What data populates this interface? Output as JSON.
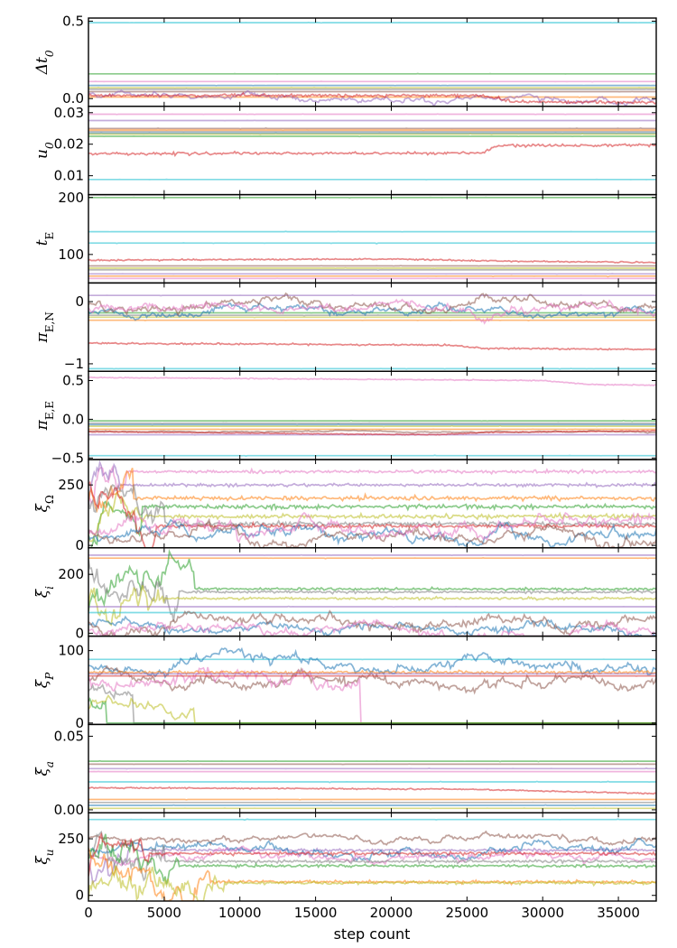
{
  "chart_data": {
    "type": "line",
    "description_kind": "MCMC walker traces, stacked panels sharing x axis",
    "xlabel": "step count",
    "xlim": [
      0,
      37500
    ],
    "xticks": [
      0,
      5000,
      10000,
      15000,
      20000,
      25000,
      30000,
      35000
    ],
    "xtick_labels": [
      "0",
      "5000",
      "10000",
      "15000",
      "20000",
      "25000",
      "30000",
      "35000"
    ],
    "grid": false,
    "legend": "none",
    "colors": [
      "#1f77b4",
      "#ff7f0e",
      "#2ca02c",
      "#d62728",
      "#9467bd",
      "#8c564b",
      "#e377c2",
      "#7f7f7f",
      "#bcbd22",
      "#17becf"
    ],
    "panels": [
      {
        "label_main": "Δt",
        "label_sub": "0",
        "sub_style": "italic",
        "ylim": [
          -0.05,
          0.52
        ],
        "yticks": [
          0.0,
          0.5
        ],
        "ytick_labels": [
          "0.0",
          "0.5"
        ],
        "walkers": [
          {
            "color": "#17becf",
            "kind": "flat",
            "level": 0.49
          },
          {
            "color": "#2ca02c",
            "kind": "flat",
            "level": 0.16
          },
          {
            "color": "#e377c2",
            "kind": "flat",
            "level": 0.11
          },
          {
            "color": "#1f77b4",
            "kind": "flat",
            "level": 0.085
          },
          {
            "color": "#7f7f7f",
            "kind": "flat",
            "level": 0.06
          },
          {
            "color": "#8c564b",
            "kind": "flat",
            "level": 0.045
          },
          {
            "color": "#bcbd22",
            "kind": "flat",
            "level": 0.07
          },
          {
            "color": "#ff7f0e",
            "kind": "flat",
            "level": 0.01
          },
          {
            "color": "#9467bd",
            "kind": "walk",
            "level": 0.03,
            "sigma": 0.01,
            "trend": -0.04
          },
          {
            "color": "#d62728",
            "kind": "drift",
            "level": 0.02,
            "sigma": 0.004,
            "segments": [
              [
                0,
                0.02
              ],
              [
                26000,
                0.02
              ],
              [
                28000,
                -0.02
              ],
              [
                37500,
                -0.025
              ]
            ]
          }
        ]
      },
      {
        "label_main": "u",
        "label_sub": "0",
        "sub_style": "italic",
        "ylim": [
          0.004,
          0.032
        ],
        "yticks": [
          0.01,
          0.02,
          0.03
        ],
        "ytick_labels": [
          "0.01",
          "0.02",
          "0.03"
        ],
        "walkers": [
          {
            "color": "#e377c2",
            "kind": "flat",
            "level": 0.0295
          },
          {
            "color": "#9467bd",
            "kind": "flat",
            "level": 0.0275
          },
          {
            "color": "#8c564b",
            "kind": "flat",
            "level": 0.025
          },
          {
            "color": "#1f77b4",
            "kind": "flat",
            "level": 0.0235
          },
          {
            "color": "#2ca02c",
            "kind": "flat",
            "level": 0.0225
          },
          {
            "color": "#7f7f7f",
            "kind": "flat",
            "level": 0.024
          },
          {
            "color": "#ff7f0e",
            "kind": "flat",
            "level": 0.0245
          },
          {
            "color": "#bcbd22",
            "kind": "flat",
            "level": 0.0232
          },
          {
            "color": "#17becf",
            "kind": "flat",
            "level": 0.0088
          },
          {
            "color": "#d62728",
            "kind": "drift",
            "level": 0.017,
            "sigma": 0.0002,
            "segments": [
              [
                0,
                0.017
              ],
              [
                26000,
                0.0172
              ],
              [
                27000,
                0.0195
              ],
              [
                37500,
                0.0198
              ]
            ]
          }
        ]
      },
      {
        "label_main": "t",
        "label_sub": "E",
        "sub_style": "upright",
        "ylim": [
          50,
          205
        ],
        "yticks": [
          100,
          200
        ],
        "ytick_labels": [
          "100",
          "200"
        ],
        "walkers": [
          {
            "color": "#2ca02c",
            "kind": "flat",
            "level": 200
          },
          {
            "color": "#17becf",
            "kind": "flat",
            "level": 140
          },
          {
            "color": "#17becf",
            "kind": "flat",
            "level": 120
          },
          {
            "color": "#d62728",
            "kind": "drift",
            "level": 91,
            "sigma": 0.6,
            "segments": [
              [
                0,
                90
              ],
              [
                20000,
                92
              ],
              [
                28000,
                88
              ],
              [
                37500,
                86
              ]
            ]
          },
          {
            "color": "#8c564b",
            "kind": "flat",
            "level": 80
          },
          {
            "color": "#bcbd22",
            "kind": "flat",
            "level": 76
          },
          {
            "color": "#7f7f7f",
            "kind": "flat",
            "level": 73
          },
          {
            "color": "#9467bd",
            "kind": "flat",
            "level": 66
          },
          {
            "color": "#ff7f0e",
            "kind": "flat",
            "level": 62
          },
          {
            "color": "#e377c2",
            "kind": "flat",
            "level": 58
          }
        ]
      },
      {
        "label_main": "π",
        "label_sub": "E,N",
        "sub_style": "upright",
        "ylim": [
          -1.12,
          0.3
        ],
        "yticks": [
          -1,
          0
        ],
        "ytick_labels": [
          "−1",
          "0"
        ],
        "walkers": [
          {
            "color": "#17becf",
            "kind": "flat",
            "level": -1.08
          },
          {
            "color": "#d62728",
            "kind": "drift",
            "level": -0.67,
            "sigma": 0.006,
            "segments": [
              [
                0,
                -0.67
              ],
              [
                24000,
                -0.7
              ],
              [
                26000,
                -0.75
              ],
              [
                37500,
                -0.77
              ]
            ]
          },
          {
            "color": "#9467bd",
            "kind": "flat",
            "level": 0.1
          },
          {
            "color": "#ff7f0e",
            "kind": "flat",
            "level": -0.3
          },
          {
            "color": "#7f7f7f",
            "kind": "flat",
            "level": -0.22
          },
          {
            "color": "#2ca02c",
            "kind": "flat",
            "level": -0.18
          },
          {
            "color": "#bcbd22",
            "kind": "flat",
            "level": -0.25
          },
          {
            "color": "#1f77b4",
            "kind": "walk",
            "level": -0.18,
            "sigma": 0.03
          },
          {
            "color": "#8c564b",
            "kind": "walk",
            "level": -0.05,
            "sigma": 0.035
          },
          {
            "color": "#e377c2",
            "kind": "walk",
            "level": -0.12,
            "sigma": 0.035
          }
        ]
      },
      {
        "label_main": "π",
        "label_sub": "E,E",
        "sub_style": "upright",
        "ylim": [
          -0.52,
          0.62
        ],
        "yticks": [
          -0.5,
          0.0,
          0.5
        ],
        "ytick_labels": [
          "−0.5",
          "0.0",
          "0.5"
        ],
        "walkers": [
          {
            "color": "#e377c2",
            "kind": "drift",
            "level": 0.53,
            "sigma": 0.003,
            "segments": [
              [
                0,
                0.54
              ],
              [
                30000,
                0.5
              ],
              [
                33000,
                0.45
              ],
              [
                37500,
                0.44
              ]
            ]
          },
          {
            "color": "#17becf",
            "kind": "flat",
            "level": -0.47
          },
          {
            "color": "#2ca02c",
            "kind": "flat",
            "level": -0.02
          },
          {
            "color": "#7f7f7f",
            "kind": "flat",
            "level": -0.05
          },
          {
            "color": "#1f77b4",
            "kind": "flat",
            "level": -0.07
          },
          {
            "color": "#bcbd22",
            "kind": "flat",
            "level": -0.09
          },
          {
            "color": "#ff7f0e",
            "kind": "flat",
            "level": -0.13
          },
          {
            "color": "#9467bd",
            "kind": "flat",
            "level": -0.2
          },
          {
            "color": "#8c564b",
            "kind": "walk",
            "level": -0.16,
            "sigma": 0.004
          },
          {
            "color": "#d62728",
            "kind": "drift",
            "level": -0.16,
            "sigma": 0.003,
            "segments": [
              [
                0,
                -0.16
              ],
              [
                23000,
                -0.2
              ],
              [
                26000,
                -0.17
              ],
              [
                37500,
                -0.15
              ]
            ]
          }
        ]
      },
      {
        "label_main": "ξ",
        "label_sub": "Ω",
        "sub_style": "upright",
        "ylim": [
          -10,
          355
        ],
        "yticks": [
          0,
          250
        ],
        "ytick_labels": [
          "0",
          "250"
        ],
        "walkers": [
          {
            "color": "#e377c2",
            "kind": "burn",
            "level": 305,
            "sigma": 3,
            "settle": 2500
          },
          {
            "color": "#9467bd",
            "kind": "burn",
            "level": 250,
            "sigma": 3,
            "settle": 2000
          },
          {
            "color": "#2ca02c",
            "kind": "burn",
            "level": 160,
            "sigma": 4,
            "settle": 3500
          },
          {
            "color": "#ff7f0e",
            "kind": "burn",
            "level": 195,
            "sigma": 4,
            "settle": 3000
          },
          {
            "color": "#bcbd22",
            "kind": "burn",
            "level": 120,
            "sigma": 4,
            "settle": 4000
          },
          {
            "color": "#7f7f7f",
            "kind": "burn",
            "level": 90,
            "sigma": 4,
            "settle": 5000
          },
          {
            "color": "#d62728",
            "kind": "burn",
            "level": 80,
            "sigma": 4,
            "settle": 4500
          },
          {
            "color": "#1f77b4",
            "kind": "walk",
            "level": 50,
            "sigma": 12
          },
          {
            "color": "#8c564b",
            "kind": "walk",
            "level": 40,
            "sigma": 12
          },
          {
            "color": "#e377c2",
            "kind": "walk",
            "level": 70,
            "sigma": 14
          }
        ]
      },
      {
        "label_main": "ξ",
        "label_sub": "i",
        "sub_style": "italic",
        "ylim": [
          -10,
          290
        ],
        "yticks": [
          0,
          200
        ],
        "ytick_labels": [
          "0",
          "200"
        ],
        "walkers": [
          {
            "color": "#9467bd",
            "kind": "flat",
            "level": 265
          },
          {
            "color": "#ff7f0e",
            "kind": "flat",
            "level": 255
          },
          {
            "color": "#2ca02c",
            "kind": "burn",
            "level": 150,
            "sigma": 2,
            "settle": 7000
          },
          {
            "color": "#7f7f7f",
            "kind": "burn",
            "level": 140,
            "sigma": 2,
            "settle": 6000
          },
          {
            "color": "#bcbd22",
            "kind": "burn",
            "level": 118,
            "sigma": 2,
            "settle": 5000
          },
          {
            "color": "#9467bd",
            "kind": "flat",
            "level": 90
          },
          {
            "color": "#17becf",
            "kind": "flat",
            "level": 70
          },
          {
            "color": "#1f77b4",
            "kind": "walk",
            "level": 25,
            "sigma": 8
          },
          {
            "color": "#8c564b",
            "kind": "walk",
            "level": 40,
            "sigma": 10
          },
          {
            "color": "#e377c2",
            "kind": "walk",
            "level": 15,
            "sigma": 9
          }
        ]
      },
      {
        "label_main": "ξ",
        "label_sub": "P",
        "sub_style": "italic",
        "ylim": [
          -2,
          120
        ],
        "yticks": [
          0,
          100
        ],
        "ytick_labels": [
          "0",
          "100"
        ],
        "walkers": [
          {
            "color": "#17becf",
            "kind": "flat",
            "level": 88
          },
          {
            "color": "#1f77b4",
            "kind": "walk",
            "level": 80,
            "sigma": 4
          },
          {
            "color": "#8c564b",
            "kind": "walk",
            "level": 60,
            "sigma": 4
          },
          {
            "color": "#e377c2",
            "kind": "drop",
            "level": 65,
            "sigma": 4,
            "dropAt": 18000
          },
          {
            "color": "#ff7f0e",
            "kind": "drift",
            "level": 70,
            "sigma": 1,
            "segments": [
              [
                0,
                70
              ],
              [
                37500,
                70
              ]
            ]
          },
          {
            "color": "#d62728",
            "kind": "flat",
            "level": 65
          },
          {
            "color": "#9467bd",
            "kind": "flat",
            "level": 68
          },
          {
            "color": "#7f7f7f",
            "kind": "drop",
            "level": 40,
            "sigma": 3,
            "dropAt": 3000
          },
          {
            "color": "#bcbd22",
            "kind": "drop",
            "level": 20,
            "sigma": 3,
            "dropAt": 7000
          },
          {
            "color": "#2ca02c",
            "kind": "drop",
            "level": 30,
            "sigma": 3,
            "dropAt": 1200
          }
        ]
      },
      {
        "label_main": "ξ",
        "label_sub": "a",
        "sub_style": "italic",
        "ylim": [
          -0.002,
          0.058
        ],
        "yticks": [
          0.0,
          0.05
        ],
        "ytick_labels": [
          "0.00",
          "0.05"
        ],
        "walkers": [
          {
            "color": "#8c564b",
            "kind": "flat",
            "level": 0.031
          },
          {
            "color": "#9467bd",
            "kind": "flat",
            "level": 0.028
          },
          {
            "color": "#2ca02c",
            "kind": "flat",
            "level": 0.033
          },
          {
            "color": "#e377c2",
            "kind": "flat",
            "level": 0.026
          },
          {
            "color": "#17becf",
            "kind": "flat",
            "level": 0.019
          },
          {
            "color": "#d62728",
            "kind": "drift",
            "level": 0.015,
            "sigma": 0.0002,
            "segments": [
              [
                0,
                0.015
              ],
              [
                25000,
                0.014
              ],
              [
                37500,
                0.011
              ]
            ]
          },
          {
            "color": "#7f7f7f",
            "kind": "flat",
            "level": 0.005
          },
          {
            "color": "#1f77b4",
            "kind": "flat",
            "level": 0.003
          },
          {
            "color": "#ff7f0e",
            "kind": "flat",
            "level": 0.007
          },
          {
            "color": "#bcbd22",
            "kind": "flat",
            "level": 0.001
          }
        ]
      },
      {
        "label_main": "ξ",
        "label_sub": "u",
        "sub_style": "italic",
        "ylim": [
          -25,
          365
        ],
        "yticks": [
          0,
          250
        ],
        "ytick_labels": [
          "0",
          "250"
        ],
        "walkers": [
          {
            "color": "#17becf",
            "kind": "flat",
            "level": 335
          },
          {
            "color": "#8c564b",
            "kind": "walk",
            "level": 255,
            "sigma": 7
          },
          {
            "color": "#9467bd",
            "kind": "burn",
            "level": 200,
            "sigma": 3,
            "settle": 3000
          },
          {
            "color": "#1f77b4",
            "kind": "walk",
            "level": 200,
            "sigma": 9
          },
          {
            "color": "#e377c2",
            "kind": "walk",
            "level": 170,
            "sigma": 9
          },
          {
            "color": "#7f7f7f",
            "kind": "burn",
            "level": 150,
            "sigma": 3,
            "settle": 5000
          },
          {
            "color": "#2ca02c",
            "kind": "burn",
            "level": 130,
            "sigma": 3,
            "settle": 6000
          },
          {
            "color": "#d62728",
            "kind": "burn",
            "level": 185,
            "sigma": 3,
            "settle": 4000
          },
          {
            "color": "#ff7f0e",
            "kind": "burn",
            "level": 60,
            "sigma": 3,
            "settle": 8000
          },
          {
            "color": "#bcbd22",
            "kind": "burn",
            "level": 55,
            "sigma": 3,
            "settle": 9000
          }
        ]
      }
    ]
  }
}
